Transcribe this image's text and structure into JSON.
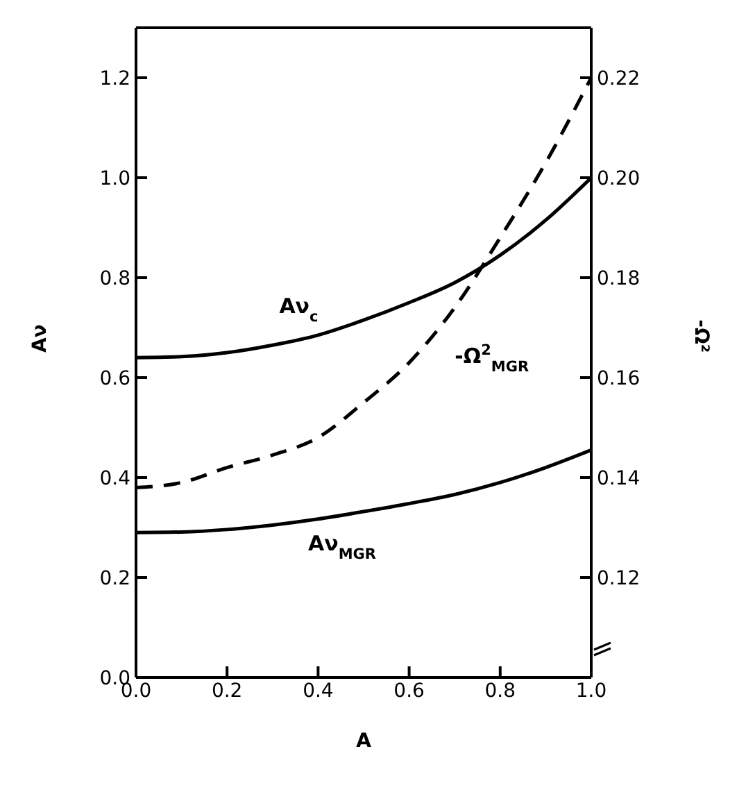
{
  "chart_data": {
    "type": "line",
    "xlabel": "A",
    "ylabel": "Aν",
    "y2label": "-Ω²",
    "x": [
      0,
      0.1,
      0.2,
      0.3,
      0.4,
      0.5,
      0.6,
      0.7,
      0.8,
      0.9,
      1.0
    ],
    "series": [
      {
        "name": "Aν$_{c}$",
        "color": "#000000",
        "line_style": "solid",
        "values": [
          0.64,
          0.642,
          0.65,
          0.665,
          0.685,
          0.715,
          0.75,
          0.79,
          0.845,
          0.915,
          1.0
        ]
      },
      {
        "name": "-Ω$^{2}$$_{MGR}$",
        "color": "#000000",
        "line_style": "dashed",
        "axis": "y2",
        "values": [
          0.138,
          0.139,
          0.142,
          0.1445,
          0.148,
          0.155,
          0.163,
          0.174,
          0.188,
          0.203,
          0.22
        ]
      },
      {
        "name": "Aν$_{MGR}$",
        "color": "#000000",
        "line_style": "solid",
        "values": [
          0.29,
          0.291,
          0.296,
          0.305,
          0.317,
          0.332,
          0.348,
          0.366,
          0.39,
          0.42,
          0.455
        ]
      }
    ],
    "xlim": [
      0,
      1.0
    ],
    "xticks": [
      {
        "value": 0,
        "label": "0.0"
      },
      {
        "value": 0.2,
        "label": "0.2"
      },
      {
        "value": 0.4,
        "label": "0.4"
      },
      {
        "value": 0.6,
        "label": "0.6"
      },
      {
        "value": 0.8,
        "label": "0.8"
      },
      {
        "value": 1.0,
        "label": "1.0"
      }
    ],
    "ylim": [
      0,
      1.3
    ],
    "yticks": [
      {
        "value": 0,
        "label": "0.0"
      },
      {
        "value": 0.2,
        "label": "0.2"
      },
      {
        "value": 0.4,
        "label": "0.4"
      },
      {
        "value": 0.6,
        "label": "0.6"
      },
      {
        "value": 0.8,
        "label": "0.8"
      },
      {
        "value": 1.0,
        "label": "1.0"
      },
      {
        "value": 1.2,
        "label": "1.2"
      }
    ],
    "y2lim": [
      0.1,
      0.23
    ],
    "y2ticks": [
      0.12,
      0.14,
      0.16,
      0.18,
      {
        "value": 0.2,
        "label": "0.20"
      },
      0.22
    ],
    "grid": false,
    "legend": false,
    "marker": "none"
  }
}
